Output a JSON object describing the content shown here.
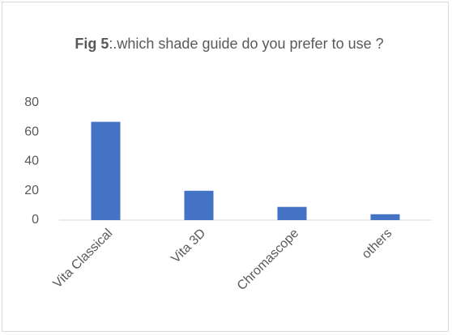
{
  "chart_data": {
    "type": "bar",
    "title_prefix": "Fig 5",
    "title": ":.which shade guide do you prefer to use ?",
    "categories": [
      "Vita Classical",
      "Vita 3D",
      "Chromascope",
      "others"
    ],
    "values": [
      67,
      20,
      9,
      4
    ],
    "color": "#4472c4",
    "ylim": [
      0,
      80
    ],
    "yticks": [
      0,
      20,
      40,
      60,
      80
    ],
    "grid": false
  }
}
